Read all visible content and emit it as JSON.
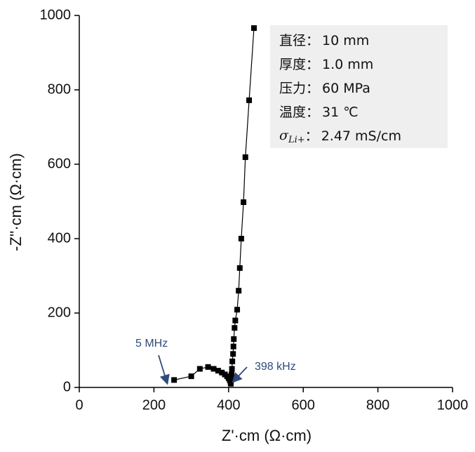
{
  "chart_data": {
    "type": "scatter",
    "x_label": "Z'·cm (Ω·cm)",
    "y_label": "-Z''·cm (Ω·cm)",
    "xlim": [
      0,
      1000
    ],
    "ylim": [
      0,
      1000
    ],
    "xticks": [
      0,
      200,
      400,
      600,
      800,
      1000
    ],
    "yticks": [
      0,
      200,
      400,
      600,
      800,
      1000
    ],
    "series": [
      {
        "color": "#000000",
        "x": [
          254,
          300,
          323,
          345,
          360,
          372,
          382,
          390,
          396,
          400,
          403,
          405,
          406,
          407,
          408,
          409,
          410,
          412,
          413,
          414,
          416,
          418,
          423,
          427,
          430,
          434,
          440,
          445,
          455,
          468
        ],
        "values": [
          20,
          30,
          50,
          55,
          50,
          45,
          40,
          35,
          30,
          25,
          20,
          15,
          10,
          20,
          35,
          50,
          70,
          90,
          110,
          130,
          160,
          180,
          209,
          260,
          321,
          400,
          498,
          619,
          772,
          966
        ]
      }
    ],
    "annotations": [
      {
        "text": "5 MHz"
      },
      {
        "text": "398 kHz"
      }
    ],
    "info": [
      {
        "label": "直径：",
        "value": "10 mm"
      },
      {
        "label": "厚度：",
        "value": "1.0 mm"
      },
      {
        "label": "压力：",
        "value": "60 MPa"
      },
      {
        "label": "温度：",
        "value": "31 ℃"
      },
      {
        "label": "σ",
        "sub": "Li+",
        "sep": "：",
        "value": "2.47 mS/cm"
      }
    ]
  }
}
